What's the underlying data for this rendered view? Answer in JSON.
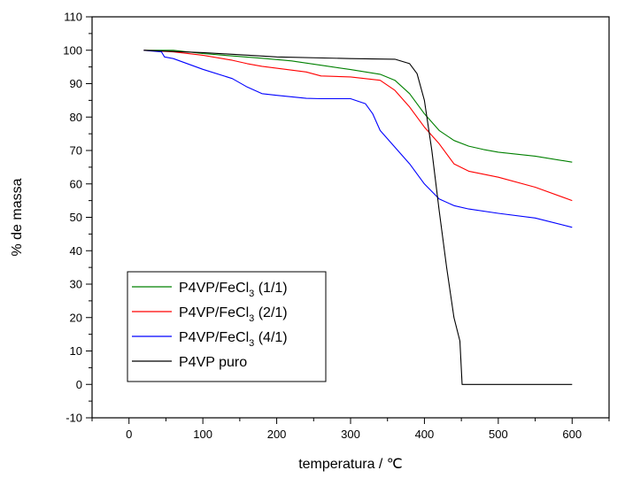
{
  "chart_data": {
    "type": "line",
    "xlabel": "temperatura / ℃",
    "ylabel": "% de massa",
    "xlim": [
      -50,
      650
    ],
    "ylim": [
      -10,
      110
    ],
    "xticks": [
      0,
      100,
      200,
      300,
      400,
      500,
      600
    ],
    "yticks": [
      -10,
      0,
      10,
      20,
      30,
      40,
      50,
      60,
      70,
      80,
      90,
      100,
      110
    ],
    "grid": false,
    "legend_position": "bottom-left",
    "series": [
      {
        "name": "P4VP/FeCl3 (1/1)",
        "legend_main": "P4VP/FeCl",
        "legend_sub": "3",
        "legend_tail": " (1/1)",
        "color": "#008000",
        "x": [
          20,
          60,
          100,
          140,
          180,
          220,
          260,
          300,
          340,
          360,
          380,
          400,
          420,
          440,
          460,
          480,
          500,
          550,
          600
        ],
        "y": [
          100,
          100,
          99,
          98.3,
          97.6,
          96.8,
          95.5,
          94.2,
          92.8,
          91,
          87,
          81,
          76,
          73,
          71.3,
          70.3,
          69.5,
          68.3,
          66.5
        ]
      },
      {
        "name": "P4VP/FeCl3 (2/1)",
        "legend_main": "P4VP/FeCl",
        "legend_sub": "3",
        "legend_tail": " (2/1)",
        "color": "#ff0000",
        "x": [
          20,
          60,
          100,
          140,
          160,
          180,
          200,
          240,
          260,
          300,
          340,
          360,
          380,
          400,
          420,
          440,
          460,
          500,
          550,
          600
        ],
        "y": [
          100,
          99.5,
          98.5,
          97,
          96,
          95.2,
          94.6,
          93.5,
          92.3,
          92,
          91,
          88,
          83,
          77,
          72,
          66,
          63.8,
          62,
          59,
          55
        ]
      },
      {
        "name": "P4VP/FeCl3 (4/1)",
        "legend_main": "P4VP/FeCl",
        "legend_sub": "3",
        "legend_tail": " (4/1)",
        "color": "#0000ff",
        "x": [
          20,
          44,
          48,
          60,
          100,
          140,
          160,
          180,
          200,
          240,
          260,
          300,
          320,
          330,
          340,
          380,
          400,
          420,
          440,
          460,
          500,
          550,
          600
        ],
        "y": [
          100,
          99.5,
          98,
          97.5,
          94.3,
          91.5,
          89,
          87,
          86.5,
          85.6,
          85.5,
          85.5,
          84,
          81,
          76,
          66,
          60,
          55.5,
          53.5,
          52.5,
          51.2,
          49.8,
          47
        ]
      },
      {
        "name": "P4VP puro",
        "legend_main": "P4VP puro",
        "legend_sub": "",
        "legend_tail": "",
        "color": "#000000",
        "x": [
          20,
          100,
          200,
          300,
          360,
          380,
          390,
          400,
          410,
          420,
          430,
          440,
          448,
          451,
          600
        ],
        "y": [
          100,
          99.3,
          98,
          97.5,
          97.3,
          96,
          93,
          85,
          70,
          52,
          35,
          20,
          13,
          0,
          0
        ]
      }
    ]
  }
}
